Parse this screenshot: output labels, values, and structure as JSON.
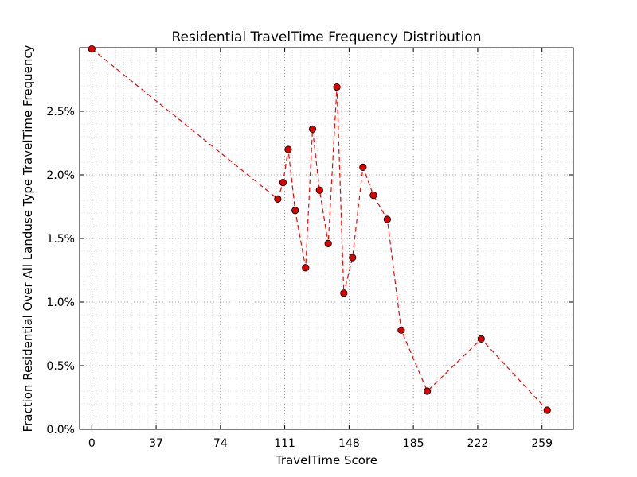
{
  "chart_data": {
    "type": "line",
    "title": "Residential TravelTime Frequency Distribution",
    "xlabel": "TravelTime Score",
    "ylabel": "Fraction Residential Over All Landuse Type TravelTime Frequency",
    "xlim": [
      -7,
      277
    ],
    "ylim": [
      0,
      0.03
    ],
    "x_ticks": [
      0,
      37,
      74,
      111,
      148,
      185,
      222,
      259
    ],
    "x_tick_labels": [
      "0",
      "37",
      "74",
      "111",
      "148",
      "185",
      "222",
      "259"
    ],
    "y_ticks": [
      0,
      0.005,
      0.01,
      0.015,
      0.02,
      0.025
    ],
    "y_tick_labels": [
      "0.0%",
      "0.5%",
      "1.0%",
      "1.5%",
      "2.0%",
      "2.5%"
    ],
    "grid": true,
    "series": [
      {
        "line_style": "dashed",
        "color": "#ff0000",
        "marker": "circle",
        "marker_color": "#dd0000",
        "x": [
          0,
          107,
          110,
          113,
          117,
          123,
          127,
          131,
          136,
          141,
          145,
          150,
          156,
          162,
          170,
          178,
          193,
          224,
          262
        ],
        "y": [
          0.0299,
          0.0181,
          0.0194,
          0.022,
          0.0172,
          0.0127,
          0.0236,
          0.0188,
          0.0146,
          0.0269,
          0.0107,
          0.0135,
          0.0206,
          0.0184,
          0.0165,
          0.0078,
          0.003,
          0.0071,
          0.0015
        ]
      }
    ]
  }
}
